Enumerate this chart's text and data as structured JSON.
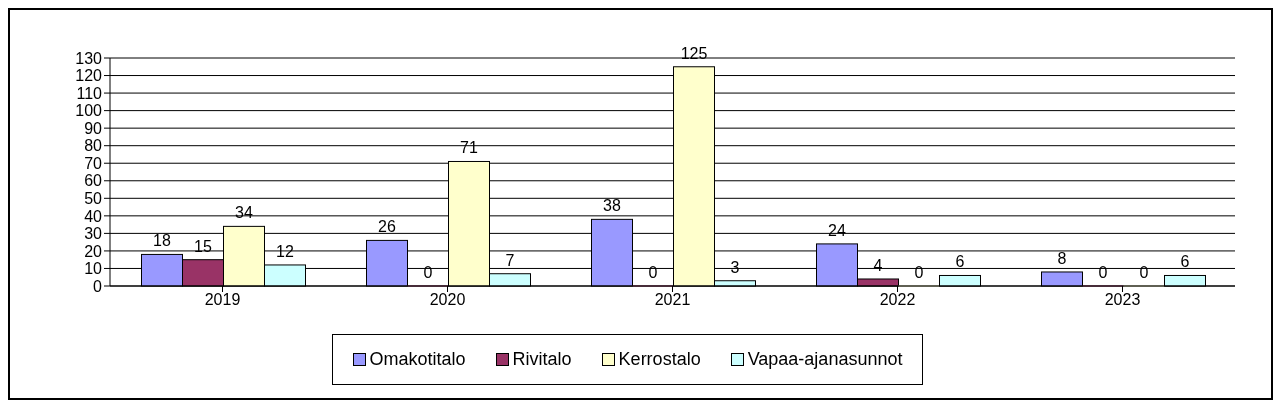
{
  "chart_data": {
    "type": "bar",
    "categories": [
      "2019",
      "2020",
      "2021",
      "2022",
      "2023"
    ],
    "series": [
      {
        "name": "Omakotitalo",
        "color": "#9999ff",
        "values": [
          18,
          26,
          38,
          24,
          8
        ]
      },
      {
        "name": "Rivitalo",
        "color": "#993366",
        "values": [
          15,
          0,
          0,
          4,
          0
        ]
      },
      {
        "name": "Kerrostalo",
        "color": "#ffffcc",
        "values": [
          34,
          71,
          125,
          0,
          0
        ]
      },
      {
        "name": "Vapaa-ajanasunnot",
        "color": "#ccffff",
        "values": [
          12,
          7,
          3,
          6,
          6
        ]
      }
    ],
    "ylim": [
      0,
      130
    ],
    "yticks": [
      0,
      10,
      20,
      30,
      40,
      50,
      60,
      70,
      80,
      90,
      100,
      110,
      120,
      130
    ],
    "grid": "y",
    "legend": "bottom",
    "data_labels": true
  }
}
